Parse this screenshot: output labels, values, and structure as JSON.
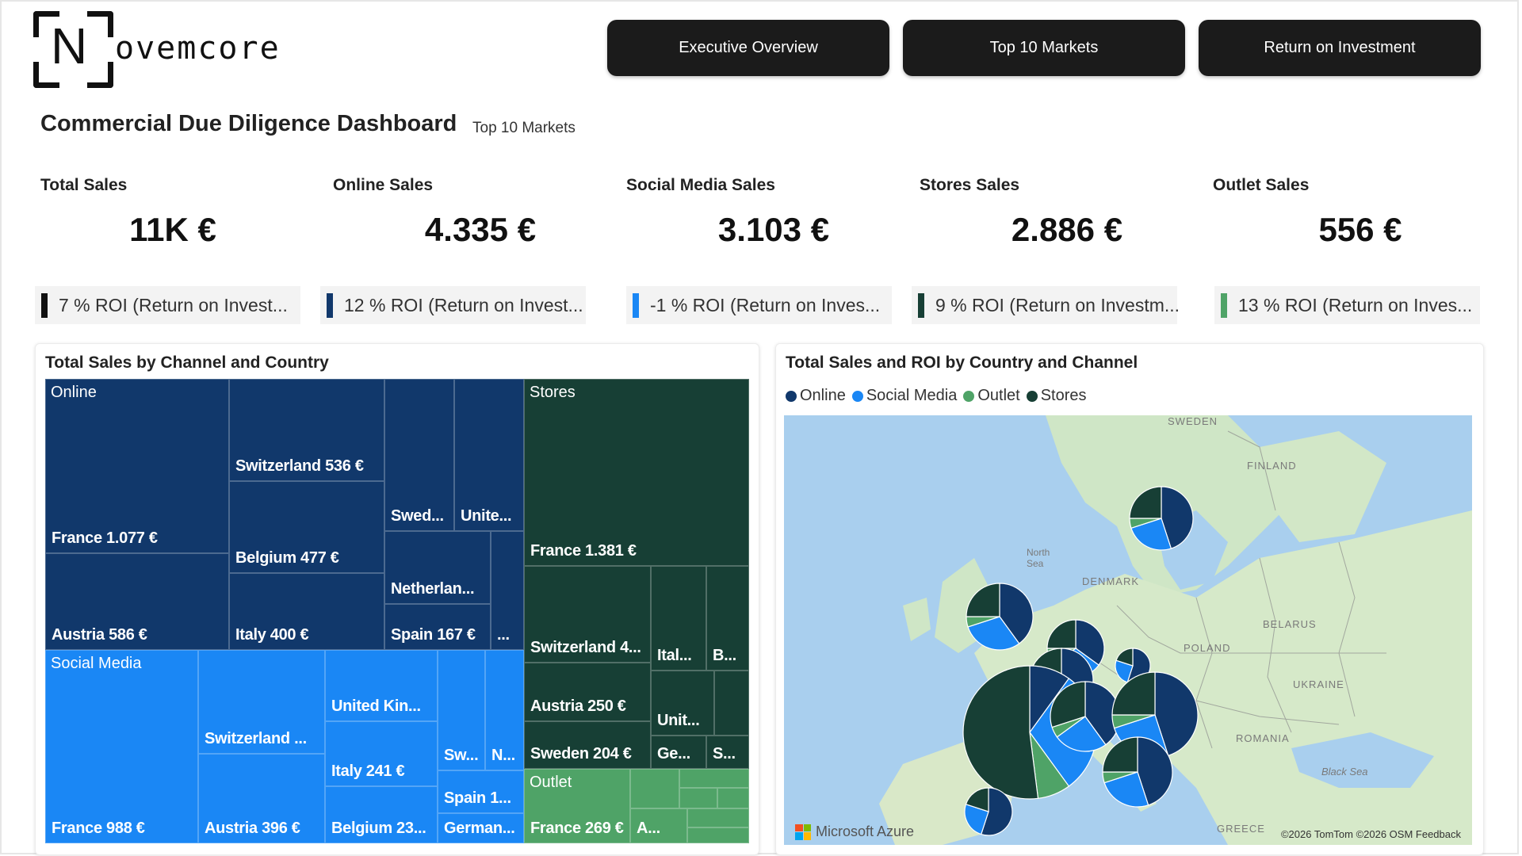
{
  "brand": {
    "logo_letter": "N",
    "logo_rest": "ovemcore"
  },
  "nav": [
    {
      "label": "Executive Overview"
    },
    {
      "label": "Top 10 Markets"
    },
    {
      "label": "Return on Investment"
    }
  ],
  "header": {
    "title": "Commercial Due Diligence Dashboard",
    "subtitle": "Top 10 Markets"
  },
  "kpis": [
    {
      "label": "Total Sales",
      "value": "11K €"
    },
    {
      "label": "Online Sales",
      "value": "4.335 €"
    },
    {
      "label": "Social Media Sales",
      "value": "3.103 €"
    },
    {
      "label": "Stores Sales",
      "value": "2.886 €"
    },
    {
      "label": "Outlet Sales",
      "value": "556 €"
    }
  ],
  "roi": [
    {
      "text": "7 % ROI (Return on Invest...",
      "color": "#111111"
    },
    {
      "text": "12 % ROI (Return on Invest...",
      "color": "#11386b"
    },
    {
      "text": "-1 % ROI (Return on Inves...",
      "color": "#1a87f5"
    },
    {
      "text": "9 % ROI (Return on Investm...",
      "color": "#173f35"
    },
    {
      "text": "13 % ROI (Return on Inves...",
      "color": "#4fa367"
    }
  ],
  "treemap_panel": {
    "title": "Total Sales by Channel and Country",
    "groups": {
      "online": "Online",
      "social": "Social Media",
      "stores": "Stores",
      "outlet": "Outlet"
    },
    "cells": {
      "on_france": "France 1.077 €",
      "on_austria": "Austria 586 €",
      "on_switzerland": "Switzerland 536 €",
      "on_belgium": "Belgium 477 €",
      "on_italy": "Italy 400 €",
      "on_sweden": "Swed...",
      "on_uk": "Unite...",
      "on_netherlands": "Netherlan...",
      "on_spain": "Spain 167 €",
      "on_more": "...",
      "sm_france": "France 988 €",
      "sm_switzerland": "Switzerland ...",
      "sm_austria": "Austria 396 €",
      "sm_uk": "United Kin...",
      "sm_italy": "Italy 241 €",
      "sm_belgium": "Belgium 23...",
      "sm_sw": "Sw...",
      "sm_n": "N...",
      "sm_spain": "Spain 1...",
      "sm_germany": "German...",
      "st_france": "France 1.381 €",
      "st_switzerland": "Switzerland 4...",
      "st_ital": "Ital...",
      "st_b": "B...",
      "st_austria": "Austria 250 €",
      "st_unit": "Unit...",
      "st_sweden": "Sweden 204 €",
      "st_ge": "Ge...",
      "st_s": "S...",
      "ou_france": "France 269 €",
      "ou_a": "A..."
    }
  },
  "map_panel": {
    "title": "Total Sales and ROI by Country and Channel",
    "legend": [
      {
        "label": "Online",
        "color": "#11386b"
      },
      {
        "label": "Social Media",
        "color": "#1a87f5"
      },
      {
        "label": "Outlet",
        "color": "#4fa367"
      },
      {
        "label": "Stores",
        "color": "#173f35"
      }
    ],
    "labels": {
      "sweden": "SWEDEN",
      "finland": "FINLAND",
      "north_sea": "North Sea",
      "denmark": "DENMARK",
      "belarus": "BELARUS",
      "poland": "POLAND",
      "ukraine": "UKRAINE",
      "romania": "ROMANIA",
      "black_sea": "Black Sea",
      "greece": "GREECE"
    },
    "provider": "Microsoft Azure",
    "attribution": "©2026 TomTom ©2026 OSM Feedback"
  }
}
